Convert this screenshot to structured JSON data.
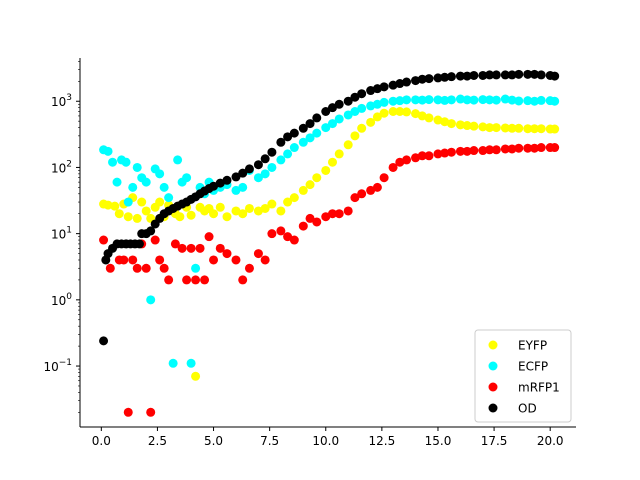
{
  "chart_data": {
    "type": "scatter",
    "title": "",
    "xlabel": "",
    "ylabel": "",
    "yscale": "log",
    "xlim": [
      -0.95,
      21.15
    ],
    "ylim": [
      0.012,
      4500
    ],
    "xticks": [
      0.0,
      2.5,
      5.0,
      7.5,
      10.0,
      12.5,
      15.0,
      17.5,
      20.0
    ],
    "xtick_labels": [
      "0.0",
      "2.5",
      "5.0",
      "7.5",
      "10.0",
      "12.5",
      "15.0",
      "17.5",
      "20.0"
    ],
    "yticks": [
      0.1,
      1,
      10,
      100,
      1000
    ],
    "ytick_labels": [
      {
        "base": "10",
        "exp": "−1"
      },
      {
        "base": "10",
        "exp": "0"
      },
      {
        "base": "10",
        "exp": "1"
      },
      {
        "base": "10",
        "exp": "2"
      },
      {
        "base": "10",
        "exp": "3"
      }
    ],
    "grid": false,
    "legend_position": "lower-right",
    "series": [
      {
        "name": "EYFP",
        "color": "#ffff00",
        "points": [
          [
            0.1,
            28
          ],
          [
            0.3,
            27
          ],
          [
            0.6,
            26
          ],
          [
            0.8,
            20
          ],
          [
            1.0,
            28
          ],
          [
            1.2,
            18
          ],
          [
            1.4,
            35
          ],
          [
            1.6,
            17
          ],
          [
            1.8,
            30
          ],
          [
            2.0,
            22
          ],
          [
            2.2,
            17
          ],
          [
            2.4,
            25
          ],
          [
            2.6,
            30
          ],
          [
            2.8,
            18
          ],
          [
            3.0,
            27
          ],
          [
            3.3,
            20
          ],
          [
            3.5,
            18
          ],
          [
            3.8,
            25
          ],
          [
            4.0,
            19
          ],
          [
            4.2,
            0.07
          ],
          [
            4.4,
            25
          ],
          [
            4.6,
            22
          ],
          [
            4.8,
            24
          ],
          [
            5.0,
            20
          ],
          [
            5.3,
            25
          ],
          [
            5.6,
            18
          ],
          [
            6.0,
            22
          ],
          [
            6.3,
            20
          ],
          [
            6.6,
            24
          ],
          [
            7.0,
            22
          ],
          [
            7.3,
            24
          ],
          [
            7.6,
            28
          ],
          [
            8.0,
            22
          ],
          [
            8.3,
            30
          ],
          [
            8.6,
            35
          ],
          [
            9.0,
            45
          ],
          [
            9.3,
            55
          ],
          [
            9.6,
            70
          ],
          [
            10.0,
            90
          ],
          [
            10.3,
            120
          ],
          [
            10.6,
            160
          ],
          [
            11.0,
            220
          ],
          [
            11.3,
            300
          ],
          [
            11.6,
            390
          ],
          [
            12.0,
            480
          ],
          [
            12.3,
            580
          ],
          [
            12.6,
            660
          ],
          [
            13.0,
            700
          ],
          [
            13.3,
            700
          ],
          [
            13.6,
            690
          ],
          [
            14.0,
            650
          ],
          [
            14.3,
            600
          ],
          [
            14.6,
            560
          ],
          [
            15.0,
            520
          ],
          [
            15.3,
            490
          ],
          [
            15.6,
            460
          ],
          [
            16.0,
            440
          ],
          [
            16.3,
            430
          ],
          [
            16.6,
            420
          ],
          [
            17.0,
            410
          ],
          [
            17.3,
            400
          ],
          [
            17.6,
            400
          ],
          [
            18.0,
            395
          ],
          [
            18.3,
            390
          ],
          [
            18.6,
            390
          ],
          [
            19.0,
            385
          ],
          [
            19.3,
            385
          ],
          [
            19.6,
            385
          ],
          [
            20.0,
            380
          ],
          [
            20.2,
            380
          ]
        ]
      },
      {
        "name": "ECFP",
        "color": "#00ffff",
        "points": [
          [
            0.1,
            185
          ],
          [
            0.3,
            175
          ],
          [
            0.5,
            120
          ],
          [
            0.7,
            60
          ],
          [
            0.9,
            130
          ],
          [
            1.1,
            120
          ],
          [
            1.2,
            30
          ],
          [
            1.4,
            50
          ],
          [
            1.6,
            100
          ],
          [
            1.8,
            70
          ],
          [
            2.0,
            60
          ],
          [
            2.2,
            1.0
          ],
          [
            2.4,
            95
          ],
          [
            2.6,
            80
          ],
          [
            2.8,
            50
          ],
          [
            3.0,
            35
          ],
          [
            3.2,
            0.11
          ],
          [
            3.4,
            130
          ],
          [
            3.6,
            60
          ],
          [
            3.8,
            70
          ],
          [
            4.0,
            0.11
          ],
          [
            4.2,
            3.0
          ],
          [
            4.4,
            50
          ],
          [
            4.6,
            40
          ],
          [
            4.8,
            60
          ],
          [
            5.0,
            45
          ],
          [
            5.3,
            50
          ],
          [
            5.6,
            55
          ],
          [
            6.0,
            45
          ],
          [
            6.3,
            50
          ],
          [
            6.6,
            90
          ],
          [
            7.0,
            70
          ],
          [
            7.3,
            80
          ],
          [
            7.6,
            100
          ],
          [
            8.0,
            130
          ],
          [
            8.3,
            160
          ],
          [
            8.6,
            200
          ],
          [
            9.0,
            240
          ],
          [
            9.3,
            280
          ],
          [
            9.6,
            330
          ],
          [
            10.0,
            400
          ],
          [
            10.3,
            460
          ],
          [
            10.6,
            540
          ],
          [
            11.0,
            620
          ],
          [
            11.3,
            700
          ],
          [
            11.6,
            780
          ],
          [
            12.0,
            850
          ],
          [
            12.3,
            900
          ],
          [
            12.6,
            960
          ],
          [
            13.0,
            1000
          ],
          [
            13.3,
            1020
          ],
          [
            13.6,
            1050
          ],
          [
            14.0,
            1050
          ],
          [
            14.3,
            1040
          ],
          [
            14.6,
            1060
          ],
          [
            15.0,
            1050
          ],
          [
            15.3,
            1030
          ],
          [
            15.6,
            1050
          ],
          [
            16.0,
            1080
          ],
          [
            16.3,
            1050
          ],
          [
            16.6,
            1040
          ],
          [
            17.0,
            1060
          ],
          [
            17.3,
            1050
          ],
          [
            17.6,
            1040
          ],
          [
            18.0,
            1080
          ],
          [
            18.3,
            1040
          ],
          [
            18.6,
            1010
          ],
          [
            19.0,
            1020
          ],
          [
            19.3,
            1000
          ],
          [
            19.6,
            1030
          ],
          [
            20.0,
            1020
          ],
          [
            20.2,
            1000
          ]
        ]
      },
      {
        "name": "mRFP1",
        "color": "#ff0000",
        "points": [
          [
            0.1,
            8
          ],
          [
            0.4,
            3
          ],
          [
            0.8,
            4
          ],
          [
            1.0,
            4
          ],
          [
            1.2,
            0.02
          ],
          [
            1.4,
            4
          ],
          [
            1.6,
            3
          ],
          [
            1.8,
            7
          ],
          [
            2.0,
            3
          ],
          [
            2.2,
            0.02
          ],
          [
            2.4,
            8
          ],
          [
            2.6,
            4
          ],
          [
            2.8,
            3
          ],
          [
            3.0,
            2
          ],
          [
            3.3,
            7
          ],
          [
            3.6,
            6
          ],
          [
            3.8,
            2
          ],
          [
            4.0,
            6
          ],
          [
            4.2,
            2
          ],
          [
            4.4,
            6
          ],
          [
            4.6,
            2
          ],
          [
            4.8,
            9
          ],
          [
            5.0,
            4
          ],
          [
            5.3,
            6
          ],
          [
            5.6,
            5
          ],
          [
            6.0,
            4
          ],
          [
            6.3,
            2
          ],
          [
            6.6,
            3
          ],
          [
            7.0,
            5
          ],
          [
            7.3,
            4
          ],
          [
            7.6,
            10
          ],
          [
            8.0,
            11
          ],
          [
            8.3,
            9
          ],
          [
            8.6,
            8
          ],
          [
            9.0,
            13
          ],
          [
            9.3,
            17
          ],
          [
            9.6,
            15
          ],
          [
            10.0,
            18
          ],
          [
            10.3,
            20
          ],
          [
            10.6,
            20
          ],
          [
            11.0,
            22
          ],
          [
            11.3,
            35
          ],
          [
            11.6,
            40
          ],
          [
            12.0,
            45
          ],
          [
            12.3,
            50
          ],
          [
            12.6,
            70
          ],
          [
            13.0,
            100
          ],
          [
            13.3,
            120
          ],
          [
            13.6,
            130
          ],
          [
            14.0,
            140
          ],
          [
            14.3,
            150
          ],
          [
            14.6,
            150
          ],
          [
            15.0,
            160
          ],
          [
            15.3,
            165
          ],
          [
            15.6,
            170
          ],
          [
            16.0,
            175
          ],
          [
            16.3,
            175
          ],
          [
            16.6,
            180
          ],
          [
            17.0,
            180
          ],
          [
            17.3,
            185
          ],
          [
            17.6,
            185
          ],
          [
            18.0,
            190
          ],
          [
            18.3,
            190
          ],
          [
            18.6,
            195
          ],
          [
            19.0,
            195
          ],
          [
            19.3,
            195
          ],
          [
            19.6,
            200
          ],
          [
            20.0,
            200
          ],
          [
            20.2,
            200
          ]
        ]
      },
      {
        "name": "OD",
        "color": "#000000",
        "points": [
          [
            0.1,
            0.24
          ],
          [
            0.2,
            4
          ],
          [
            0.3,
            5
          ],
          [
            0.5,
            6
          ],
          [
            0.7,
            7
          ],
          [
            0.9,
            7
          ],
          [
            1.1,
            7
          ],
          [
            1.3,
            7
          ],
          [
            1.5,
            7
          ],
          [
            1.7,
            7
          ],
          [
            1.8,
            10
          ],
          [
            2.0,
            10
          ],
          [
            2.2,
            11
          ],
          [
            2.4,
            14
          ],
          [
            2.6,
            17
          ],
          [
            2.8,
            20
          ],
          [
            3.0,
            22
          ],
          [
            3.2,
            24
          ],
          [
            3.4,
            26
          ],
          [
            3.6,
            28
          ],
          [
            3.8,
            30
          ],
          [
            4.0,
            33
          ],
          [
            4.2,
            36
          ],
          [
            4.4,
            40
          ],
          [
            4.6,
            44
          ],
          [
            4.8,
            48
          ],
          [
            5.0,
            52
          ],
          [
            5.3,
            58
          ],
          [
            5.6,
            64
          ],
          [
            6.0,
            72
          ],
          [
            6.3,
            82
          ],
          [
            6.6,
            95
          ],
          [
            7.0,
            110
          ],
          [
            7.3,
            135
          ],
          [
            7.6,
            170
          ],
          [
            8.0,
            240
          ],
          [
            8.3,
            290
          ],
          [
            8.6,
            330
          ],
          [
            9.0,
            390
          ],
          [
            9.3,
            460
          ],
          [
            9.6,
            560
          ],
          [
            10.0,
            700
          ],
          [
            10.3,
            800
          ],
          [
            10.6,
            900
          ],
          [
            11.0,
            1000
          ],
          [
            11.3,
            1150
          ],
          [
            11.6,
            1300
          ],
          [
            12.0,
            1450
          ],
          [
            12.3,
            1550
          ],
          [
            12.6,
            1650
          ],
          [
            13.0,
            1750
          ],
          [
            13.3,
            1850
          ],
          [
            13.6,
            1950
          ],
          [
            14.0,
            2050
          ],
          [
            14.3,
            2150
          ],
          [
            14.6,
            2200
          ],
          [
            15.0,
            2250
          ],
          [
            15.3,
            2300
          ],
          [
            15.6,
            2350
          ],
          [
            16.0,
            2400
          ],
          [
            16.3,
            2400
          ],
          [
            16.6,
            2450
          ],
          [
            17.0,
            2450
          ],
          [
            17.3,
            2500
          ],
          [
            17.6,
            2500
          ],
          [
            18.0,
            2500
          ],
          [
            18.3,
            2500
          ],
          [
            18.6,
            2550
          ],
          [
            19.0,
            2550
          ],
          [
            19.3,
            2550
          ],
          [
            19.6,
            2500
          ],
          [
            20.0,
            2450
          ],
          [
            20.2,
            2400
          ]
        ]
      }
    ]
  }
}
